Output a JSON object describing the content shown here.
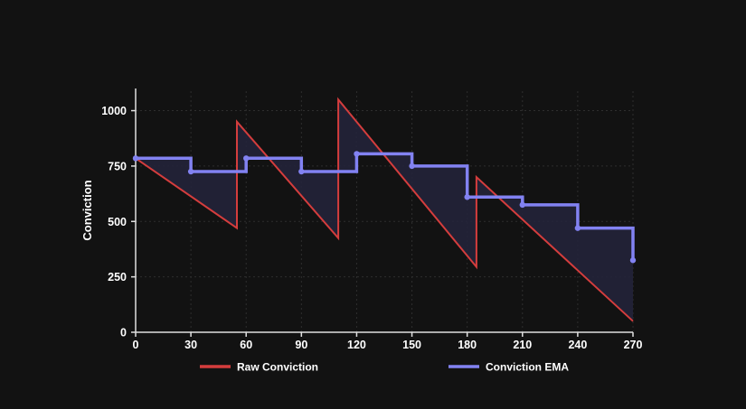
{
  "chart_data": {
    "type": "line",
    "title": "",
    "xlabel": "",
    "ylabel": "Conviction",
    "xlim": [
      0,
      270
    ],
    "ylim": [
      0,
      1100
    ],
    "x_ticks": [
      0,
      30,
      60,
      90,
      120,
      150,
      180,
      210,
      240,
      270
    ],
    "y_ticks": [
      0,
      250,
      500,
      750,
      1000
    ],
    "grid": true,
    "legend_position": "bottom",
    "colors": {
      "background": "#121212",
      "grid": "#2e2e2e",
      "axis": "#e0e0e0",
      "raw": "#d43d3d",
      "ema": "#8282f2",
      "fill": "#23233a"
    },
    "series": [
      {
        "name": "Raw Conviction",
        "style": "line",
        "color": "#d43d3d",
        "points": [
          [
            0,
            785
          ],
          [
            55,
            470
          ],
          [
            55,
            950
          ],
          [
            110,
            425
          ],
          [
            110,
            1050
          ],
          [
            185,
            295
          ],
          [
            185,
            700
          ],
          [
            270,
            50
          ]
        ]
      },
      {
        "name": "Conviction EMA",
        "style": "step",
        "color": "#8282f2",
        "points": [
          [
            0,
            785
          ],
          [
            30,
            785
          ],
          [
            30,
            725
          ],
          [
            60,
            725
          ],
          [
            60,
            785
          ],
          [
            90,
            785
          ],
          [
            90,
            725
          ],
          [
            120,
            725
          ],
          [
            120,
            805
          ],
          [
            150,
            805
          ],
          [
            150,
            750
          ],
          [
            180,
            750
          ],
          [
            180,
            610
          ],
          [
            210,
            610
          ],
          [
            210,
            575
          ],
          [
            240,
            575
          ],
          [
            240,
            470
          ],
          [
            270,
            470
          ],
          [
            270,
            325
          ]
        ],
        "markers": [
          [
            0,
            785
          ],
          [
            30,
            725
          ],
          [
            60,
            785
          ],
          [
            90,
            725
          ],
          [
            120,
            805
          ],
          [
            150,
            750
          ],
          [
            180,
            610
          ],
          [
            210,
            575
          ],
          [
            240,
            470
          ],
          [
            270,
            325
          ]
        ]
      }
    ]
  }
}
